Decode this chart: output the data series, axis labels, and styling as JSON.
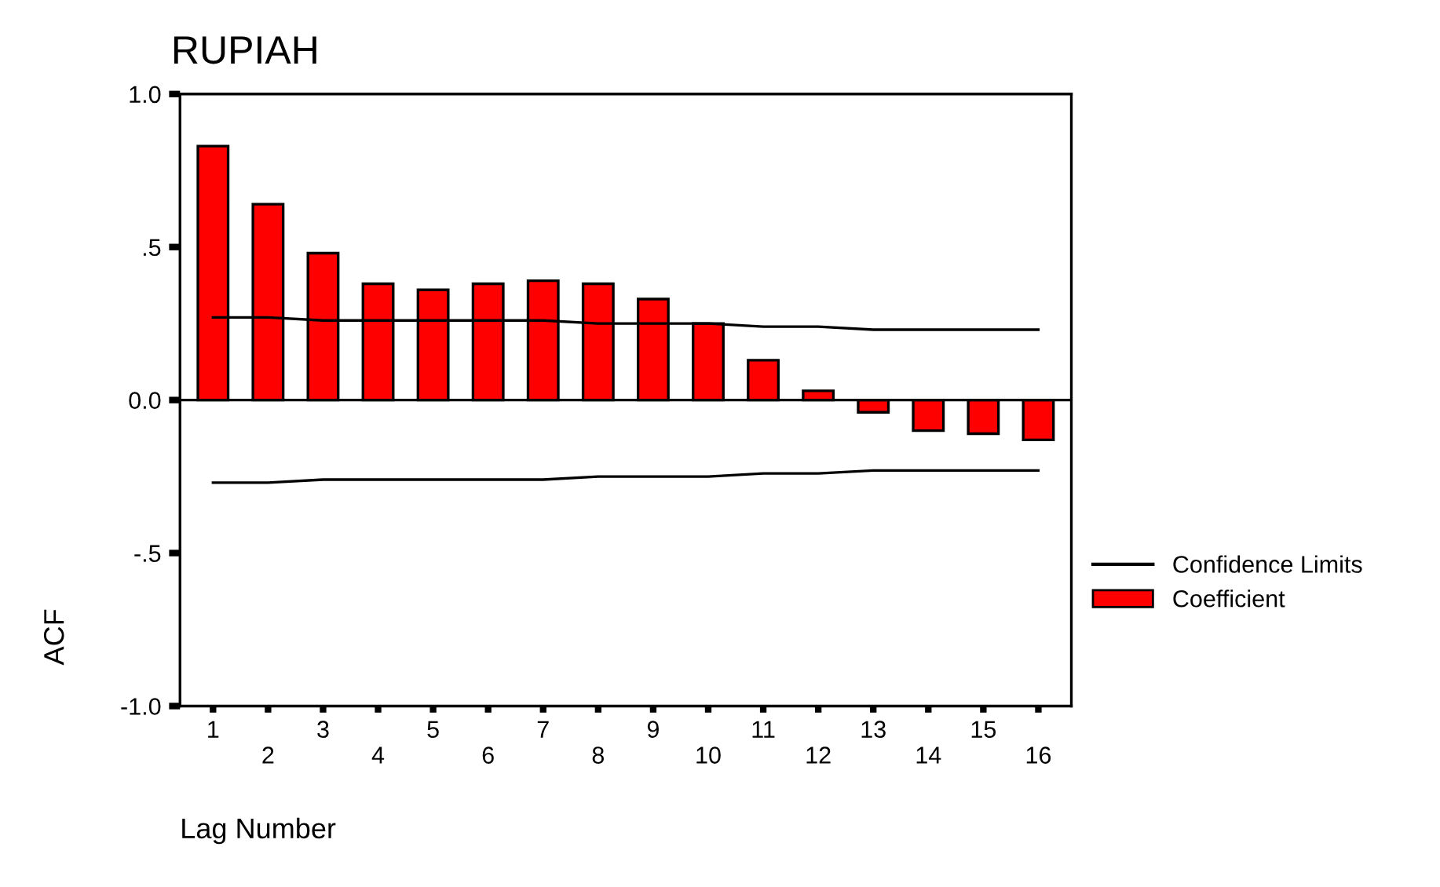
{
  "chart_data": {
    "type": "bar",
    "title": "RUPIAH",
    "xlabel": "Lag Number",
    "ylabel": "ACF",
    "categories": [
      "1",
      "2",
      "3",
      "4",
      "5",
      "6",
      "7",
      "8",
      "9",
      "10",
      "11",
      "12",
      "13",
      "14",
      "15",
      "16"
    ],
    "series": [
      {
        "name": "Coefficient",
        "color": "#ff0000",
        "values": [
          0.83,
          0.64,
          0.48,
          0.38,
          0.36,
          0.38,
          0.39,
          0.38,
          0.33,
          0.25,
          0.13,
          0.03,
          -0.04,
          -0.1,
          -0.11,
          -0.13
        ]
      },
      {
        "name": "Confidence Limits",
        "type": "line",
        "color": "#000000",
        "values": [
          0.27,
          0.27,
          0.26,
          0.26,
          0.26,
          0.26,
          0.26,
          0.25,
          0.25,
          0.25,
          0.24,
          0.24,
          0.23,
          0.23,
          0.23,
          0.23
        ]
      },
      {
        "type": "line",
        "color": "#000000",
        "values": [
          -0.27,
          -0.27,
          -0.26,
          -0.26,
          -0.26,
          -0.26,
          -0.26,
          -0.25,
          -0.25,
          -0.25,
          -0.24,
          -0.24,
          -0.23,
          -0.23,
          -0.23,
          -0.23
        ]
      }
    ],
    "ylim": [
      -1.0,
      1.0
    ],
    "yticks": [
      {
        "value": 1.0,
        "label": "1.0"
      },
      {
        "value": 0.5,
        "label": ".5"
      },
      {
        "value": 0.0,
        "label": "0.0"
      },
      {
        "value": -0.5,
        "label": "-.5"
      },
      {
        "value": -1.0,
        "label": "-1.0"
      }
    ],
    "ref_lines": [
      {
        "axis": "y",
        "value": 0
      }
    ],
    "grid": false,
    "legend": "right",
    "marker": "none",
    "line_style": "solid"
  }
}
